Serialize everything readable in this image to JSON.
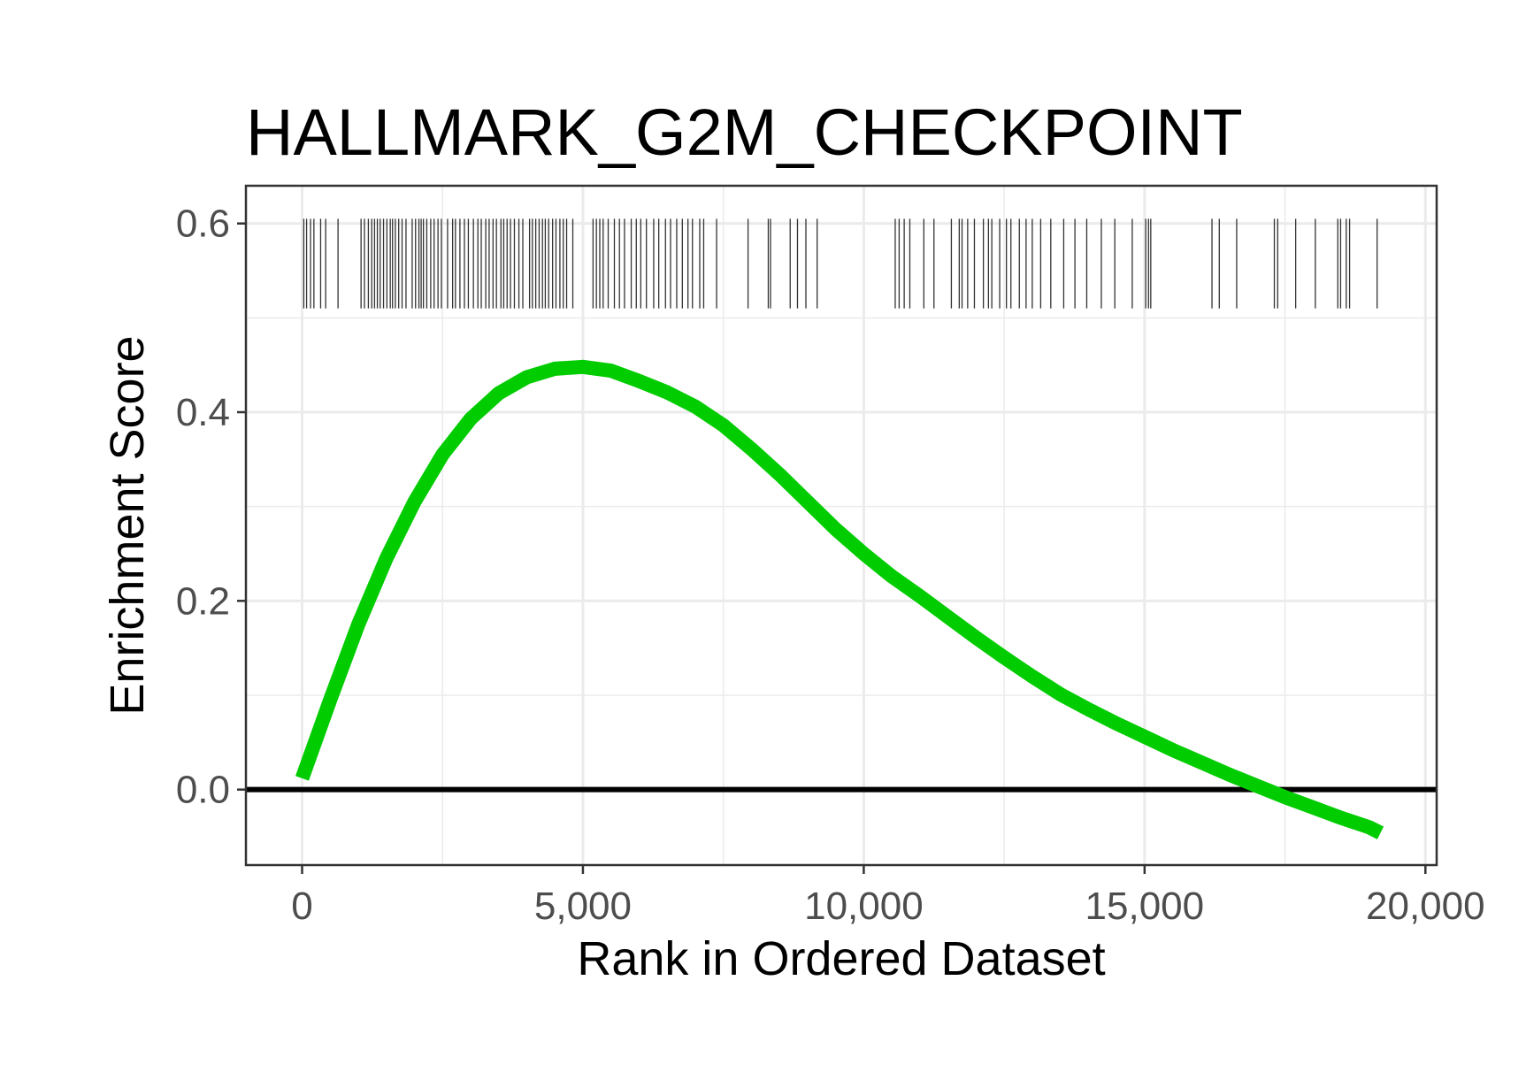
{
  "chart_data": {
    "type": "line",
    "title": "HALLMARK_G2M_CHECKPOINT",
    "xlabel": "Rank in Ordered Dataset",
    "ylabel": "Enrichment Score",
    "xlim": [
      -1000,
      20200
    ],
    "ylim": [
      -0.08,
      0.64
    ],
    "x_ticks": [
      0,
      5000,
      10000,
      15000,
      20000
    ],
    "x_tick_labels": [
      "0",
      "5,000",
      "10,000",
      "15,000",
      "20,000"
    ],
    "y_ticks": [
      0.0,
      0.2,
      0.4,
      0.6
    ],
    "y_tick_labels": [
      "0.0",
      "0.2",
      "0.4",
      "0.6"
    ],
    "grid": true,
    "hline": 0,
    "colors": {
      "curve": "#00cc00",
      "hline": "#000000",
      "hits": "#333333",
      "grid": "#ebebeb",
      "border": "#333333"
    },
    "series": [
      {
        "x": [
          0,
          500,
          1000,
          1500,
          2000,
          2500,
          3000,
          3500,
          4000,
          4500,
          5000,
          5500,
          6000,
          6500,
          7000,
          7500,
          8000,
          8500,
          9000,
          9500,
          10000,
          10500,
          11000,
          11500,
          12000,
          12500,
          13000,
          13500,
          14000,
          14500,
          15000,
          15500,
          16000,
          16500,
          17000,
          17500,
          18000,
          18500,
          19000,
          19200
        ],
        "y": [
          0.012,
          0.095,
          0.175,
          0.245,
          0.305,
          0.355,
          0.393,
          0.42,
          0.437,
          0.446,
          0.448,
          0.444,
          0.433,
          0.421,
          0.406,
          0.386,
          0.361,
          0.334,
          0.305,
          0.276,
          0.25,
          0.226,
          0.205,
          0.183,
          0.161,
          0.14,
          0.12,
          0.101,
          0.085,
          0.07,
          0.056,
          0.042,
          0.029,
          0.016,
          0.004,
          -0.008,
          -0.019,
          -0.03,
          -0.04,
          -0.046
        ]
      }
    ],
    "hits": {
      "y_range": [
        0.51,
        0.605
      ],
      "positions": [
        30,
        80,
        150,
        210,
        330,
        420,
        640,
        1050,
        1110,
        1180,
        1240,
        1290,
        1340,
        1390,
        1450,
        1510,
        1570,
        1610,
        1660,
        1720,
        1780,
        1850,
        1960,
        2020,
        2080,
        2120,
        2160,
        2220,
        2290,
        2350,
        2420,
        2480,
        2590,
        2680,
        2730,
        2810,
        2890,
        2960,
        3050,
        3130,
        3190,
        3270,
        3330,
        3400,
        3460,
        3540,
        3590,
        3650,
        3710,
        3780,
        3860,
        3930,
        4050,
        4100,
        4160,
        4220,
        4280,
        4330,
        4390,
        4460,
        4520,
        4590,
        4650,
        4710,
        4820,
        5180,
        5240,
        5300,
        5360,
        5450,
        5560,
        5650,
        5740,
        5860,
        5950,
        6030,
        6130,
        6260,
        6350,
        6470,
        6560,
        6670,
        6770,
        6870,
        6950,
        7080,
        7150,
        7380,
        7940,
        8300,
        8340,
        8690,
        8820,
        8970,
        9170,
        10560,
        10630,
        10720,
        10820,
        11070,
        11250,
        11560,
        11700,
        11750,
        11850,
        11970,
        12130,
        12220,
        12280,
        12420,
        12540,
        12620,
        12770,
        12890,
        13000,
        13150,
        13330,
        13560,
        13760,
        13970,
        14230,
        14470,
        14780,
        15020,
        15070,
        15110,
        16200,
        16330,
        16640,
        17310,
        17370,
        17690,
        18040,
        18440,
        18490,
        18590,
        18650,
        19140
      ]
    }
  }
}
